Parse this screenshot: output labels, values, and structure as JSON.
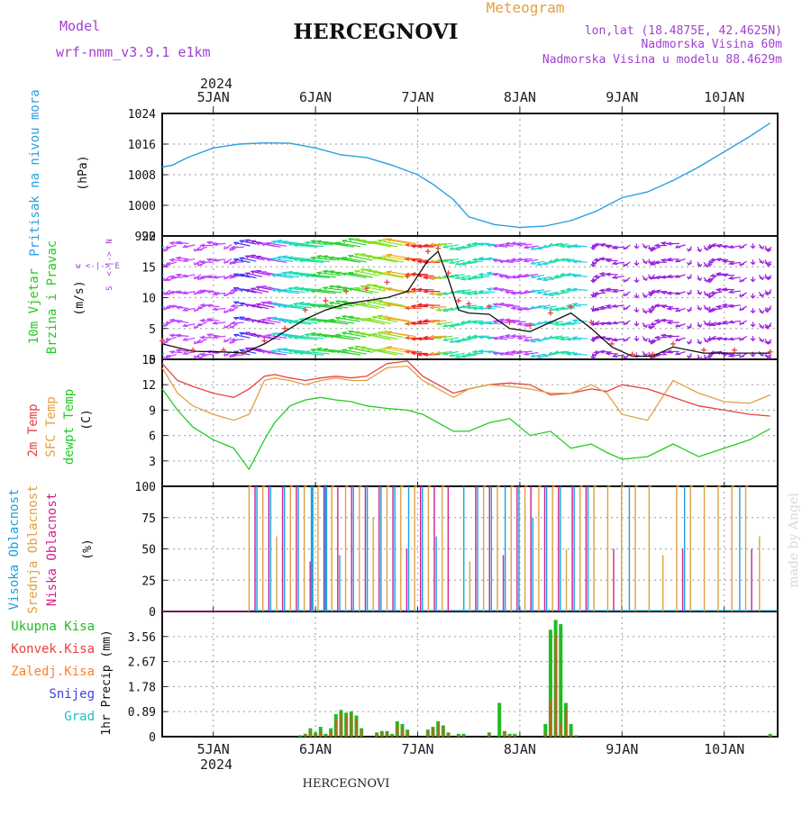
{
  "header": {
    "model_label": "Model",
    "model_name": "wrf-nmm_v3.9.1 e1km",
    "title": "HERCEGNOVI",
    "meteogram": "Meteogram",
    "lonlat": "lon,lat (18.4875E, 42.4625N)",
    "altitude": "Nadmorska Visina 60m",
    "model_altitude": "Nadmorska Visina u modelu 88.4629m",
    "footer_station": "HERCEGNOVI",
    "watermark": "made by Angel"
  },
  "time_axis": {
    "year": "2024",
    "days": [
      "5JAN",
      "6JAN",
      "7JAN",
      "8JAN",
      "9JAN",
      "10JAN"
    ]
  },
  "colors": {
    "pressure": "#2aa0e0",
    "temp2m": "#e84040",
    "sfc_temp": "#e0a040",
    "dewpoint": "#22cc22",
    "high_cloud": "#1aa0e0",
    "mid_cloud": "#e0a040",
    "low_cloud": "#d02090",
    "total_precip": "#22bb22",
    "conv_precip": "#e84040",
    "freezing_precip": "#ff7f27",
    "snow": "#4040e0",
    "hail": "#20c0c0",
    "purple": "#a040d0"
  },
  "chart_data": [
    {
      "type": "line",
      "panel": "pressure",
      "ylabel_main": "Pritisak na nivou mora",
      "ylabel_unit": "(hPa)",
      "ylim": [
        992,
        1024
      ],
      "yticks": [
        "992",
        "1000",
        "1008",
        "1016",
        "1024"
      ],
      "grid": true,
      "x": [
        0.0,
        0.1,
        0.25,
        0.5,
        0.75,
        1.0,
        1.25,
        1.5,
        1.75,
        2.0,
        2.25,
        2.5,
        2.65,
        2.85,
        3.0,
        3.25,
        3.5,
        3.75,
        4.0,
        4.25,
        4.5,
        4.75,
        5.0,
        5.25,
        5.5,
        5.75,
        5.95
      ],
      "series": [
        {
          "values": [
            1010,
            1010.5,
            1012.5,
            1015,
            1016,
            1016.3,
            1016.2,
            1015,
            1013.2,
            1012.5,
            1010.5,
            1008,
            1005.5,
            1001.5,
            997,
            995,
            994.2,
            994.6,
            996,
            998.5,
            1002,
            1003.5,
            1006.5,
            1010,
            1014,
            1018,
            1021.5
          ]
        }
      ]
    },
    {
      "type": "line",
      "panel": "wind",
      "ylabel_main": "10m Vjetar",
      "ylabel_sub": "Brzina i Pravac",
      "ylabel_unit": "(m/s)",
      "compass": "w <-|-> E",
      "compass_vertical": "<-|->",
      "compass_n": "N",
      "compass_s": "S",
      "ylim": [
        0,
        20
      ],
      "yticks": [
        "0",
        "5",
        "10",
        "15",
        "20"
      ],
      "grid": true,
      "x": [
        0.0,
        0.3,
        0.6,
        0.8,
        1.0,
        1.2,
        1.4,
        1.6,
        1.8,
        2.0,
        2.2,
        2.4,
        2.6,
        2.7,
        2.8,
        2.9,
        3.0,
        3.2,
        3.4,
        3.6,
        3.8,
        4.0,
        4.2,
        4.4,
        4.6,
        4.8,
        5.0,
        5.3,
        5.6,
        5.95
      ],
      "series": [
        {
          "name": "speed",
          "values": [
            2.5,
            1.3,
            1.2,
            1.0,
            2.5,
            4.5,
            6.5,
            8.0,
            9.0,
            9.5,
            10.0,
            11.0,
            16.0,
            17.5,
            13.0,
            8.0,
            7.5,
            7.3,
            5.0,
            4.5,
            6.0,
            7.5,
            5.0,
            2.0,
            0.5,
            0.5,
            2.0,
            1.0,
            1.0,
            1.0
          ]
        },
        {
          "name": "gust",
          "values": [
            3.0,
            1.5,
            1.5,
            1.2,
            3.0,
            5.0,
            8.0,
            9.5,
            11.0,
            11.5,
            12.5,
            13.5,
            17.5,
            18.0,
            14.0,
            9.5,
            9.0,
            8.5,
            6.0,
            5.5,
            7.5,
            8.5,
            6.0,
            2.5,
            0.8,
            0.8,
            2.5,
            1.5,
            1.5,
            1.2
          ]
        }
      ]
    },
    {
      "type": "line",
      "panel": "temperature",
      "ylabel_temp2m": "2m Temp",
      "ylabel_sfc": "SFC Temp",
      "ylabel_dew": "dewpt Temp",
      "ylabel_unit": "(C)",
      "ylim": [
        0,
        15
      ],
      "yticks": [
        "3",
        "6",
        "9",
        "12",
        "15"
      ],
      "grid": true,
      "x": [
        0.0,
        0.15,
        0.3,
        0.5,
        0.7,
        0.85,
        1.0,
        1.1,
        1.25,
        1.4,
        1.55,
        1.7,
        1.85,
        2.0,
        2.2,
        2.4,
        2.55,
        2.7,
        2.85,
        3.0,
        3.2,
        3.4,
        3.6,
        3.8,
        4.0,
        4.2,
        4.35,
        4.5,
        4.75,
        5.0,
        5.25,
        5.5,
        5.75,
        5.95
      ],
      "series": [
        {
          "name": "2m Temp",
          "values": [
            14.5,
            12.5,
            11.8,
            11.0,
            10.5,
            11.5,
            13.0,
            13.2,
            12.8,
            12.5,
            12.8,
            13.0,
            12.8,
            13.0,
            14.5,
            14.8,
            13.0,
            12.0,
            11.0,
            11.5,
            12.0,
            12.2,
            12.0,
            10.8,
            11.0,
            11.5,
            11.2,
            12.0,
            11.5,
            10.5,
            9.5,
            9.0,
            8.5,
            8.3
          ]
        },
        {
          "name": "SFC Temp",
          "values": [
            14.0,
            11.0,
            9.5,
            8.5,
            7.8,
            8.5,
            12.5,
            12.8,
            12.5,
            12.0,
            12.5,
            12.8,
            12.5,
            12.5,
            14.0,
            14.2,
            12.5,
            11.5,
            10.5,
            11.5,
            12.0,
            11.8,
            11.5,
            11.0,
            11.0,
            12.0,
            11.0,
            8.5,
            7.8,
            12.5,
            11.0,
            10.0,
            9.8,
            10.8
          ]
        },
        {
          "name": "dewpt Temp",
          "values": [
            11.5,
            9.0,
            7.0,
            5.5,
            4.5,
            2.0,
            5.5,
            7.5,
            9.5,
            10.2,
            10.5,
            10.2,
            10.0,
            9.5,
            9.2,
            9.0,
            8.5,
            7.5,
            6.5,
            6.5,
            7.5,
            8.0,
            6.0,
            6.5,
            4.5,
            5.0,
            4.0,
            3.2,
            3.5,
            5.0,
            3.5,
            4.5,
            5.5,
            6.8
          ]
        }
      ]
    },
    {
      "type": "bar",
      "panel": "clouds",
      "ylabel_high": "Visoka Oblacnost",
      "ylabel_mid": "Srednja Oblacnost",
      "ylabel_low": "Niska Oblacnost",
      "ylabel_unit": "(%)",
      "ylim": [
        0,
        100
      ],
      "yticks": [
        "0",
        "25",
        "50",
        "75",
        "100"
      ],
      "grid": true,
      "clear_until_day": 0.85,
      "typical_cover_percent": 100,
      "partial_cover_values_percent": [
        50,
        45,
        60,
        75,
        40
      ]
    },
    {
      "type": "bar",
      "panel": "precip",
      "legend": [
        "Ukupna Kisa",
        "Konvek.Kisa",
        "Zaledj.Kisa",
        "Snijeg",
        "Grad"
      ],
      "ylabel_unit": "1hr Precip (mm)",
      "ylim": [
        0,
        4.45
      ],
      "yticks": [
        "0",
        "0.89",
        "1.78",
        "2.67",
        "3.56"
      ],
      "grid": true,
      "x": [
        1.35,
        1.4,
        1.45,
        1.5,
        1.55,
        1.6,
        1.65,
        1.7,
        1.75,
        1.8,
        1.85,
        1.9,
        1.95,
        2.1,
        2.15,
        2.2,
        2.25,
        2.3,
        2.35,
        2.4,
        2.6,
        2.65,
        2.7,
        2.75,
        2.8,
        2.9,
        2.95,
        3.2,
        3.3,
        3.35,
        3.4,
        3.45,
        3.75,
        3.8,
        3.85,
        3.9,
        3.95,
        4.0,
        4.05,
        5.95
      ],
      "series": [
        {
          "name": "Ukupna Kisa",
          "values": [
            0.05,
            0.1,
            0.3,
            0.15,
            0.35,
            0.1,
            0.3,
            0.8,
            0.95,
            0.85,
            0.9,
            0.75,
            0.3,
            0.15,
            0.2,
            0.2,
            0.1,
            0.55,
            0.45,
            0.25,
            0.25,
            0.35,
            0.55,
            0.4,
            0.15,
            0.1,
            0.1,
            0.15,
            1.2,
            0.2,
            0.1,
            0.1,
            0.45,
            3.8,
            4.15,
            4.0,
            1.2,
            0.45,
            0.05,
            0.1
          ]
        },
        {
          "name": "Konvek.Kisa",
          "values": [
            0.0,
            0.1,
            0.2,
            0.1,
            0.2,
            0.05,
            0.2,
            0.6,
            0.85,
            0.75,
            0.8,
            0.6,
            0.25,
            0.1,
            0.15,
            0.15,
            0.05,
            0.4,
            0.3,
            0.15,
            0.2,
            0.3,
            0.45,
            0.35,
            0.1,
            0.05,
            0.05,
            0.1,
            0.0,
            0.15,
            0.05,
            0.05,
            0.1,
            1.3,
            3.6,
            0.5,
            1.0,
            0.1,
            0.0,
            0.05
          ]
        }
      ]
    }
  ]
}
